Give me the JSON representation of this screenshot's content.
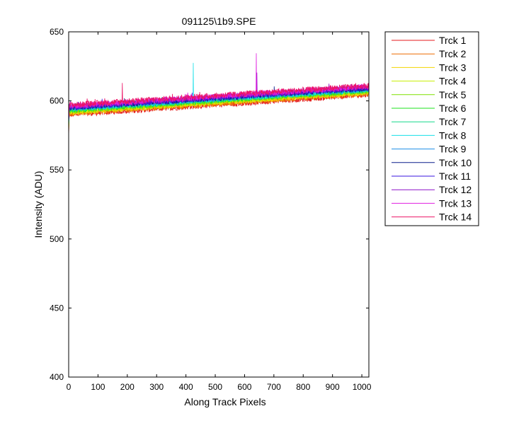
{
  "chart_data": {
    "type": "line",
    "title": "091125\\1b9.SPE",
    "xlabel": "Along Track Pixels",
    "ylabel": "Intensity (ADU)",
    "xlim": [
      0,
      1024
    ],
    "ylim": [
      400,
      650
    ],
    "xticks": [
      0,
      100,
      200,
      300,
      400,
      500,
      600,
      700,
      800,
      900,
      1000
    ],
    "yticks": [
      400,
      450,
      500,
      550,
      600,
      650
    ],
    "grid": false,
    "legend_position": "outside-right",
    "series": [
      {
        "name": "Trck 1",
        "color": "#e41a1c",
        "start": 590.0,
        "end": 604.5
      },
      {
        "name": "Trck 2",
        "color": "#ee6a00",
        "start": 590.8,
        "end": 605.3
      },
      {
        "name": "Trck 3",
        "color": "#f2d400",
        "start": 591.5,
        "end": 606.0
      },
      {
        "name": "Trck 4",
        "color": "#c8ee00",
        "start": 592.2,
        "end": 606.6
      },
      {
        "name": "Trck 5",
        "color": "#7ee000",
        "start": 592.8,
        "end": 607.2
      },
      {
        "name": "Trck 6",
        "color": "#1ee31e",
        "start": 593.3,
        "end": 607.6
      },
      {
        "name": "Trck 7",
        "color": "#17d98c",
        "start": 593.8,
        "end": 608.0
      },
      {
        "name": "Trck 8",
        "color": "#17e0e8",
        "start": 594.2,
        "end": 608.4,
        "spike": {
          "x": 425,
          "y": 627.5
        }
      },
      {
        "name": "Trck 9",
        "color": "#1c8ee6",
        "start": 594.6,
        "end": 608.8
      },
      {
        "name": "Trck 10",
        "color": "#0a1f8c",
        "start": 595.0,
        "end": 609.2
      },
      {
        "name": "Trck 11",
        "color": "#3a14e0",
        "start": 595.4,
        "end": 609.6
      },
      {
        "name": "Trck 12",
        "color": "#8e10c8",
        "start": 595.8,
        "end": 610.0,
        "spike": {
          "x": 642,
          "y": 620.5
        }
      },
      {
        "name": "Trck 13",
        "color": "#e01ee0",
        "start": 596.3,
        "end": 610.5,
        "spike": {
          "x": 640,
          "y": 634.5
        }
      },
      {
        "name": "Trck 14",
        "color": "#ec1466",
        "start": 597.0,
        "end": 611.0,
        "spike": {
          "x": 183,
          "y": 613.0
        }
      }
    ]
  }
}
